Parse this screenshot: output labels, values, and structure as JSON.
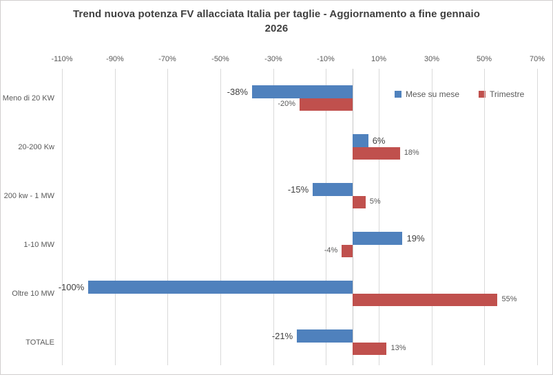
{
  "chart_data": {
    "type": "bar",
    "orientation": "horizontal",
    "title_lines": [
      "Trend nuova potenza FV allacciata Italia per taglie - Aggiornamento a fine gennaio",
      "2026"
    ],
    "categories": [
      "Meno di 20 KW",
      "20-200 Kw",
      "200 kw - 1 MW",
      "1-10 MW",
      "Oltre 10 MW",
      "TOTALE"
    ],
    "series": [
      {
        "name": "Mese su mese",
        "color": "#4F81BD",
        "values": [
          -38,
          6,
          -15,
          19,
          -100,
          -21
        ],
        "labels": [
          "-38%",
          "6%",
          "-15%",
          "19%",
          "-100%",
          "-21%"
        ]
      },
      {
        "name": "Trimestre",
        "color": "#C0504D",
        "values": [
          -20,
          18,
          5,
          -4,
          55,
          13
        ],
        "labels": [
          "-20%",
          "18%",
          "5%",
          "-4%",
          "55%",
          "13%"
        ]
      }
    ],
    "x_axis": {
      "ticks": [
        "-110%",
        "-90%",
        "-70%",
        "-50%",
        "-30%",
        "-10%",
        "10%",
        "30%",
        "50%",
        "70%"
      ],
      "tick_values": [
        -110,
        -90,
        -70,
        -50,
        -30,
        -10,
        10,
        30,
        50,
        70
      ],
      "min": -110,
      "max": 70,
      "step": 20
    },
    "legend": {
      "position": "inside-top-right",
      "entries": [
        {
          "label": "Mese su mese",
          "color": "#4F81BD"
        },
        {
          "label": "Trimestre",
          "color": "#C0504D"
        }
      ]
    },
    "gridlines": true,
    "colors": {
      "gridline": "#D9D9D9",
      "zero_axis": "#C6C6C6",
      "title": "#404040",
      "axis_text": "#595959",
      "primary_value_label": "#404040",
      "secondary_value_label": "#595959",
      "frame_border": "#D0CECE",
      "background": "#FFFFFF"
    }
  }
}
